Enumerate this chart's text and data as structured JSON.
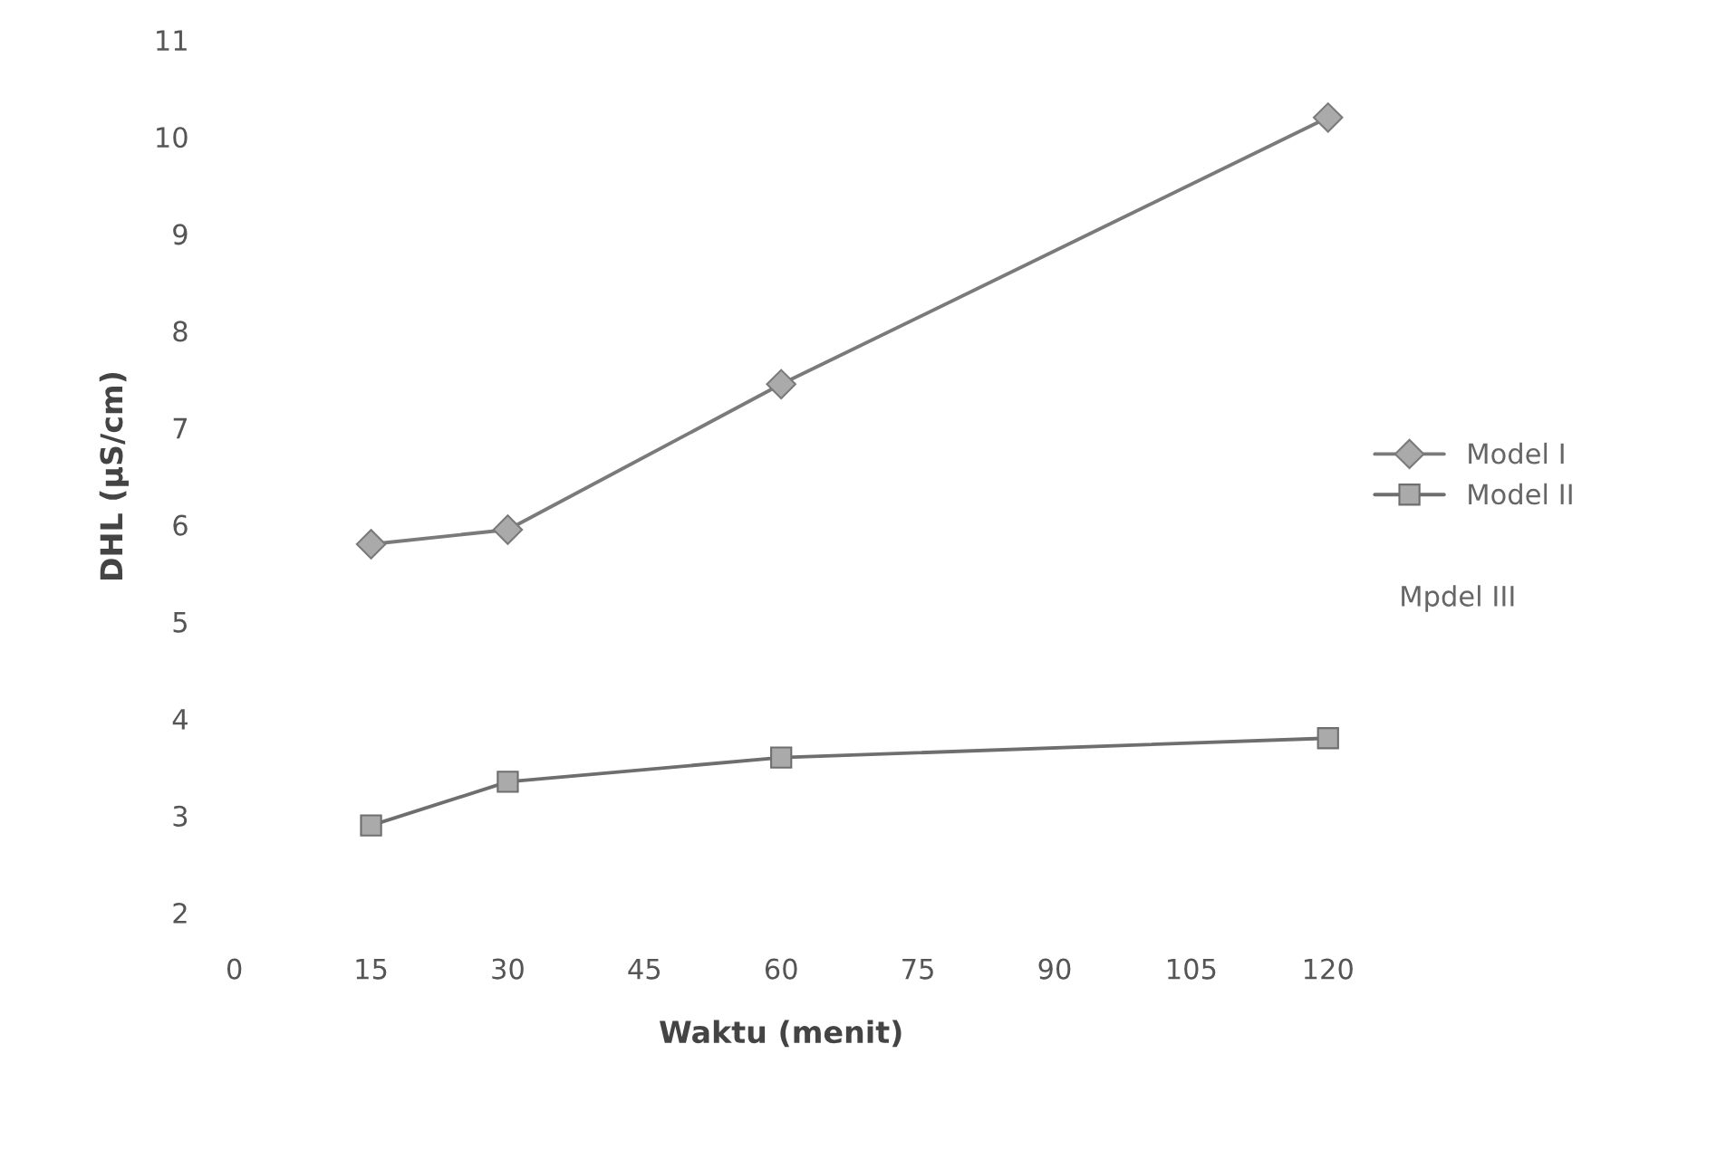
{
  "chart_data": {
    "type": "line",
    "xlabel": "Waktu (menit)",
    "ylabel": "DHL (µS/cm)",
    "x": [
      15,
      30,
      60,
      120
    ],
    "series": [
      {
        "name": "Model I",
        "color": "#7a7a7a",
        "marker": "diamond",
        "values": [
          5.8,
          5.95,
          7.45,
          10.2
        ]
      },
      {
        "name": "Model II",
        "color": "#6e6e6e",
        "marker": "square",
        "values": [
          2.9,
          3.35,
          3.6,
          3.8
        ]
      }
    ],
    "annotations": [
      "Mpdel III"
    ],
    "xlim": [
      0,
      120
    ],
    "xticks": [
      0,
      15,
      30,
      45,
      60,
      75,
      90,
      105,
      120
    ],
    "ylim": [
      2,
      11
    ],
    "yticks": [
      2,
      3,
      4,
      5,
      6,
      7,
      8,
      9,
      10,
      11
    ],
    "grid": false,
    "legend": "right",
    "line_style": "solid"
  }
}
